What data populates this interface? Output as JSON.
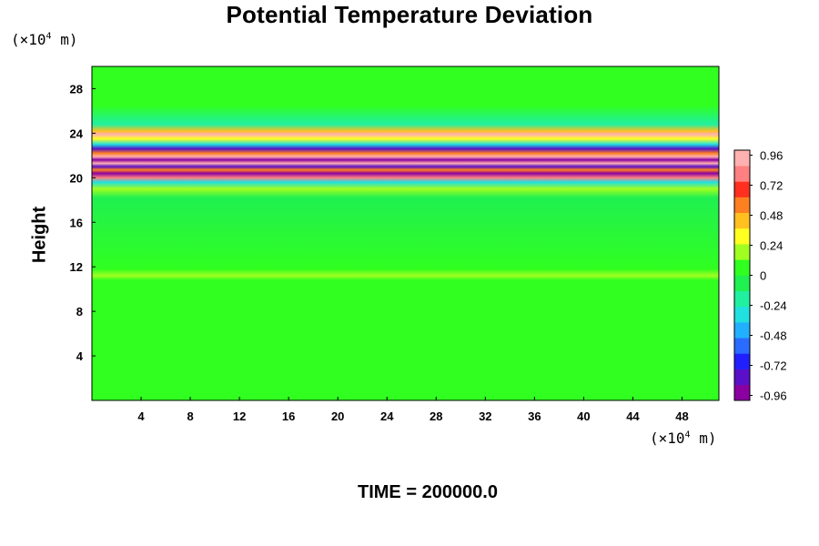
{
  "chart_data": {
    "type": "heatmap",
    "title": "Potential Temperature Deviation",
    "ylabel": "Height",
    "xlabel": "",
    "y_unit": {
      "prefix": "(×10",
      "exp": "4",
      "suffix": " m)"
    },
    "x_unit": {
      "prefix": "(×10",
      "exp": "4",
      "suffix": " m)"
    },
    "xlim": [
      0,
      51
    ],
    "ylim": [
      0,
      30
    ],
    "x_ticks": [
      "4",
      "8",
      "12",
      "16",
      "20",
      "24",
      "28",
      "32",
      "36",
      "40",
      "44",
      "48"
    ],
    "y_ticks": [
      "4",
      "8",
      "12",
      "16",
      "20",
      "24",
      "28"
    ],
    "colorbar": {
      "range": [
        -1.0,
        1.0
      ],
      "ticks": [
        "0.96",
        "0.72",
        "0.48",
        "0.24",
        "0",
        "-0.24",
        "-0.48",
        "-0.72",
        "-0.96"
      ],
      "colors": [
        "#8a00a0",
        "#5a10c8",
        "#2020ff",
        "#2a6cff",
        "#20b0ff",
        "#20e0e0",
        "#20f0a0",
        "#20f050",
        "#30ff20",
        "#a0ff20",
        "#ffff20",
        "#ffc020",
        "#ff8020",
        "#ff3020",
        "#ff8080",
        "#ffb0b0"
      ]
    },
    "bands": [
      {
        "y": 29.0,
        "value": 0.0
      },
      {
        "y": 26.5,
        "value": 0.08
      },
      {
        "y": 24.8,
        "value": -0.2
      },
      {
        "y": 24.2,
        "value": 0.4
      },
      {
        "y": 23.9,
        "value": 0.9
      },
      {
        "y": 23.5,
        "value": 0.3
      },
      {
        "y": 23.0,
        "value": -0.35
      },
      {
        "y": 22.6,
        "value": -0.85
      },
      {
        "y": 22.2,
        "value": 0.5
      },
      {
        "y": 21.9,
        "value": 0.95
      },
      {
        "y": 21.6,
        "value": -0.95
      },
      {
        "y": 21.3,
        "value": 0.92
      },
      {
        "y": 21.0,
        "value": -0.8
      },
      {
        "y": 20.7,
        "value": 0.6
      },
      {
        "y": 20.4,
        "value": -0.9
      },
      {
        "y": 20.0,
        "value": 0.85
      },
      {
        "y": 19.6,
        "value": -0.3
      },
      {
        "y": 19.0,
        "value": 0.2
      },
      {
        "y": 18.2,
        "value": -0.08
      },
      {
        "y": 11.8,
        "value": 0.06
      },
      {
        "y": 11.2,
        "value": 0.2
      },
      {
        "y": 10.8,
        "value": 0.05
      },
      {
        "y": 0.5,
        "value": 0.02
      }
    ]
  },
  "time_label": "TIME = 200000.0"
}
